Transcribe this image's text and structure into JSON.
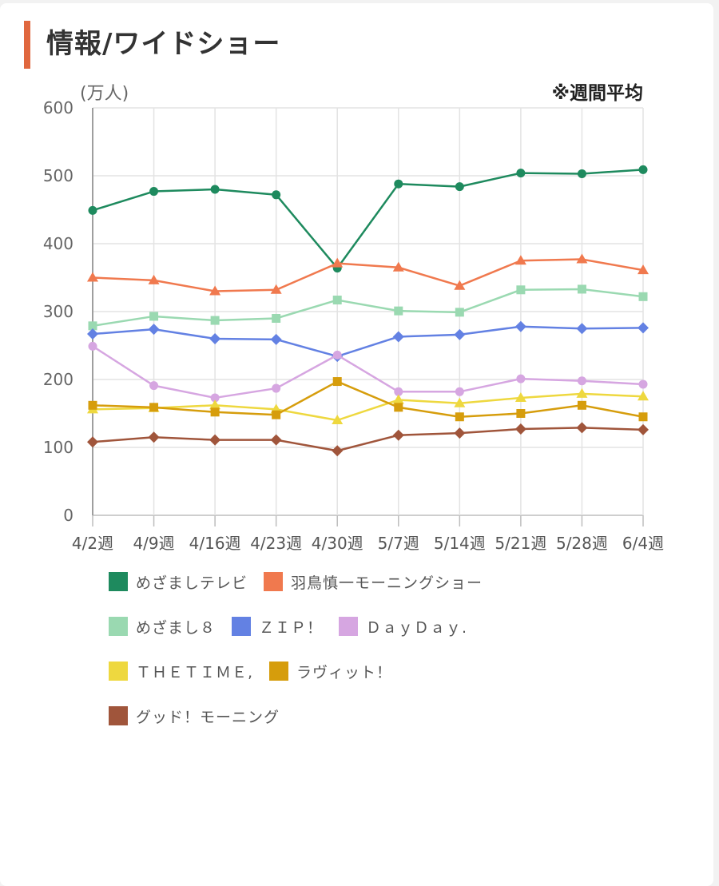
{
  "title": "情報/ワイドショー",
  "chart_data": {
    "type": "line",
    "unit_label": "(万人)",
    "note": "※週間平均",
    "categories": [
      "4/2週",
      "4/9週",
      "4/16週",
      "4/23週",
      "4/30週",
      "5/7週",
      "5/14週",
      "5/21週",
      "5/28週",
      "6/4週"
    ],
    "ylim": [
      0,
      600
    ],
    "yticks": [
      0,
      100,
      200,
      300,
      400,
      500,
      600
    ],
    "grid": true,
    "legend_position": "bottom",
    "series": [
      {
        "name": "めざましテレビ",
        "color": "#1e8a5e",
        "marker": "circle",
        "values": [
          449,
          477,
          480,
          472,
          364,
          488,
          484,
          504,
          503,
          509
        ]
      },
      {
        "name": "羽鳥慎一モーニングショー",
        "color": "#f0794e",
        "marker": "triangle",
        "values": [
          350,
          346,
          330,
          332,
          371,
          365,
          338,
          375,
          377,
          361
        ]
      },
      {
        "name": "めざまし８",
        "color": "#9ad9b1",
        "marker": "square",
        "values": [
          279,
          293,
          287,
          290,
          317,
          301,
          299,
          332,
          333,
          322
        ]
      },
      {
        "name": "ＺＩＰ！",
        "color": "#6381e3",
        "marker": "diamond",
        "values": [
          267,
          274,
          260,
          259,
          234,
          263,
          266,
          278,
          275,
          276
        ]
      },
      {
        "name": "ＤａｙＤａｙ.",
        "color": "#d6a6e1",
        "marker": "circle",
        "values": [
          249,
          191,
          173,
          187,
          236,
          182,
          182,
          201,
          198,
          193
        ]
      },
      {
        "name": "ＴＨＥＴＩＭＥ,",
        "color": "#eed83f",
        "marker": "triangle",
        "values": [
          156,
          158,
          162,
          156,
          140,
          170,
          165,
          173,
          179,
          175
        ]
      },
      {
        "name": "ラヴィット！",
        "color": "#d69d0c",
        "marker": "square",
        "values": [
          162,
          159,
          152,
          148,
          197,
          159,
          145,
          150,
          162,
          145
        ]
      },
      {
        "name": "グッド！モーニング",
        "color": "#a0553b",
        "marker": "diamond",
        "values": [
          108,
          115,
          111,
          111,
          95,
          118,
          121,
          127,
          129,
          126
        ]
      }
    ]
  }
}
